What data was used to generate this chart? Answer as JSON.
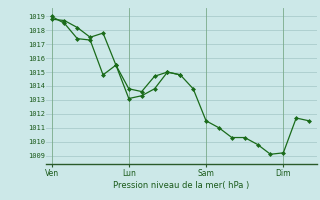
{
  "background_color": "#cce8e8",
  "grid_color": "#aacccc",
  "line_color": "#1a6b1a",
  "marker_color": "#1a6b1a",
  "xlabel": "Pression niveau de la mer( hPa )",
  "ylabel_values": [
    1009,
    1010,
    1011,
    1012,
    1013,
    1014,
    1015,
    1016,
    1017,
    1018,
    1019
  ],
  "ylim": [
    1008.4,
    1019.6
  ],
  "xtick_labels": [
    "Ven",
    "Lun",
    "Sam",
    "Dim"
  ],
  "xtick_positions": [
    0,
    30,
    60,
    90
  ],
  "xlim": [
    -2,
    103
  ],
  "vline_positions": [
    0,
    30,
    60,
    90
  ],
  "series1_x": [
    0,
    5,
    10,
    15,
    20,
    25,
    30,
    35,
    40,
    45,
    50,
    55,
    60,
    65,
    70,
    75,
    80,
    85,
    90,
    95,
    100
  ],
  "series1_y": [
    1018.8,
    1018.7,
    1018.2,
    1017.5,
    1017.8,
    1015.5,
    1013.1,
    1013.3,
    1013.8,
    1015.0,
    1014.8,
    1013.8,
    1011.5,
    1011.0,
    1010.3,
    1010.3,
    1009.8,
    1009.1,
    1009.2,
    1011.7,
    1011.5
  ],
  "series2_x": [
    0,
    5,
    10,
    15,
    20,
    25,
    30,
    35,
    40,
    45,
    50
  ],
  "series2_y": [
    1019.0,
    1018.5,
    1017.4,
    1017.3,
    1014.8,
    1015.5,
    1013.8,
    1013.6,
    1014.7,
    1015.0,
    1014.8
  ]
}
